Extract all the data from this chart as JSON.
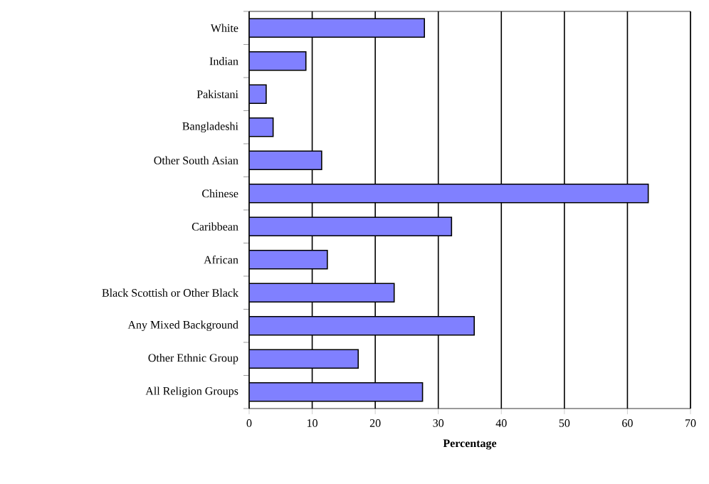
{
  "chart_data": {
    "type": "bar",
    "orientation": "horizontal",
    "xlabel": "Percentage",
    "categories": [
      "White",
      "Indian",
      "Pakistani",
      "Bangladeshi",
      "Other South Asian",
      "Chinese",
      "Caribbean",
      "African",
      "Black Scottish or Other Black",
      "Any Mixed Background",
      "Other Ethnic Group",
      "All Religion Groups"
    ],
    "values": [
      27.8,
      9.0,
      2.7,
      3.8,
      11.5,
      63.3,
      32.1,
      12.4,
      23.0,
      35.7,
      17.3,
      27.5
    ],
    "color": "#8080ff",
    "xlim": [
      0,
      70
    ],
    "xticks": [
      0,
      10,
      20,
      30,
      40,
      50,
      60,
      70
    ],
    "grid": "x"
  }
}
